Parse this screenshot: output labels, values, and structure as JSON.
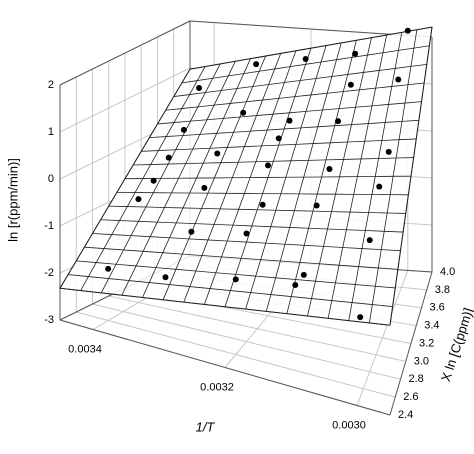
{
  "chart_data": {
    "type": "scatter3d",
    "x_label": "1/T",
    "y_label": "X ln [C(ppm)]",
    "z_label": "ln [r(ppm/min)]",
    "x": [
      0.0034,
      0.0034,
      0.0034,
      0.0034,
      0.0034,
      0.0034,
      0.0033,
      0.0033,
      0.0033,
      0.0033,
      0.0033,
      0.0033,
      0.0032,
      0.0032,
      0.0032,
      0.0032,
      0.0032,
      0.0032,
      0.0032,
      0.0031,
      0.0031,
      0.0031,
      0.0031,
      0.0031,
      0.0031,
      0.0031,
      0.003,
      0.003,
      0.003,
      0.003,
      0.003,
      0.003
    ],
    "y": [
      2.6,
      3.0,
      3.4,
      3.8,
      3.2,
      3.6,
      2.5,
      2.9,
      3.3,
      3.7,
      3.9,
      3.1,
      2.6,
      2.8,
      3.1,
      3.4,
      3.6,
      3.9,
      3.2,
      2.5,
      2.7,
      3.0,
      3.3,
      3.5,
      3.8,
      3.9,
      2.5,
      2.8,
      3.1,
      3.4,
      3.7,
      4.0
    ],
    "z": [
      -1.9,
      -0.8,
      -0.3,
      0.8,
      -0.6,
      0.1,
      -1.6,
      -1.1,
      0.1,
      0.5,
      1.3,
      -0.4,
      -1.4,
      -0.7,
      -0.5,
      0.5,
      0.6,
      1.5,
      0.2,
      -1.0,
      -1.1,
      -0.1,
      0.2,
      0.9,
      1.2,
      1.7,
      -1.3,
      -0.2,
      0.4,
      0.6,
      1.6,
      2.1
    ],
    "color": "#000000",
    "xlim": [
      0.00345,
      0.00295
    ],
    "ylim": [
      2.4,
      4.0
    ],
    "zlim": [
      -3,
      2
    ],
    "xticks": [
      0.0034,
      0.0032,
      {
        "value": 0.003,
        "label": "0.0030"
      }
    ],
    "yticks": [
      2.4,
      2.6,
      2.8,
      {
        "value": 3,
        "label": "3.0"
      },
      3.2,
      3.4,
      3.6,
      3.8,
      {
        "value": 4,
        "label": "4.0"
      }
    ],
    "zticks": [
      -3,
      -2,
      -1,
      0,
      1,
      2
    ],
    "grid": true
  }
}
